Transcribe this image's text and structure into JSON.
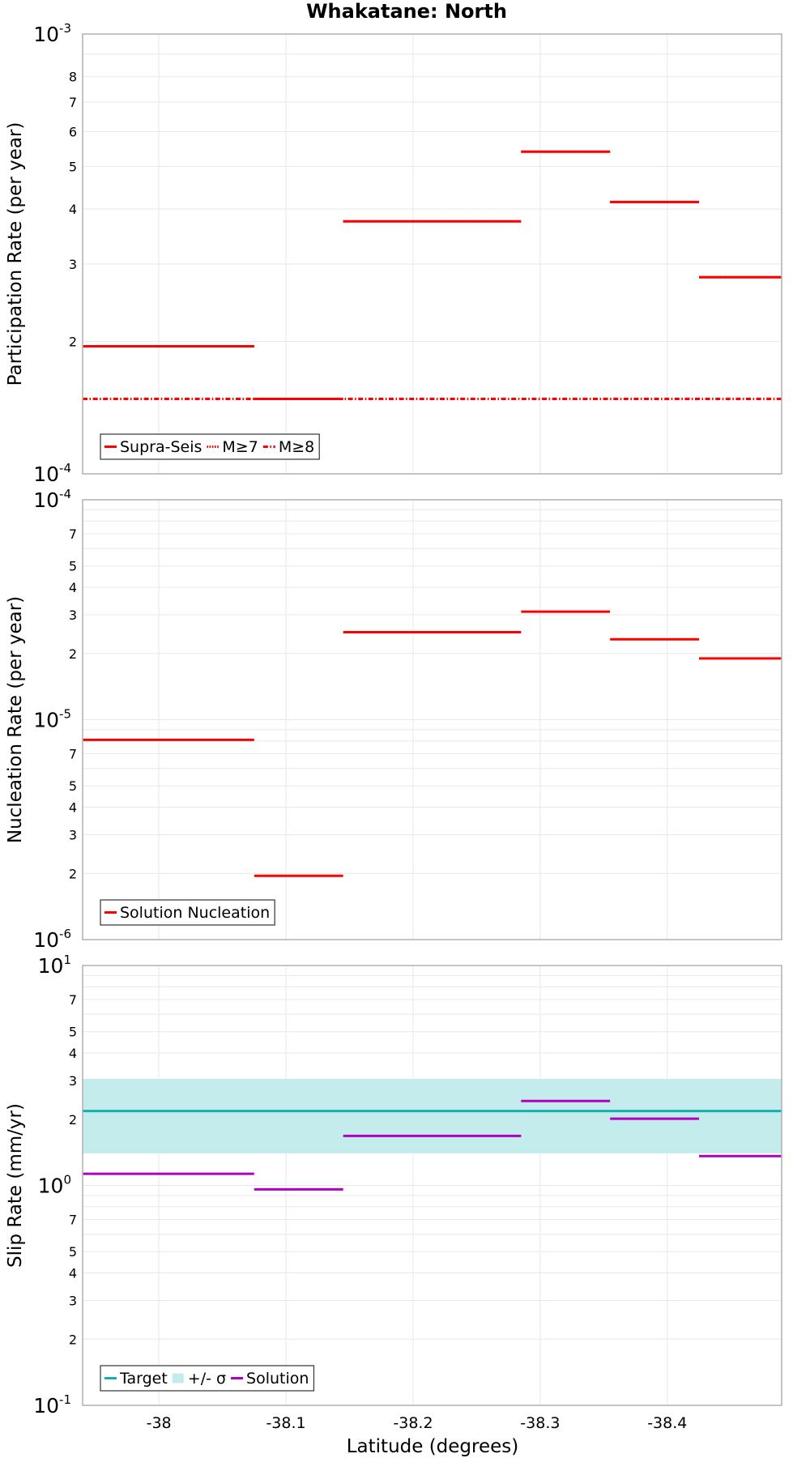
{
  "chart_data": {
    "type": "line",
    "title": "Whakatane: North",
    "xlabel": "Latitude (degrees)",
    "xlim": [
      -37.94,
      -38.49
    ],
    "x_ticks": [
      -38,
      -38.1,
      -38.2,
      -38.3,
      -38.4
    ],
    "x_tick_labels": [
      "-38",
      "-38.1",
      "-38.2",
      "-38.3",
      "-38.4"
    ],
    "colors": {
      "red": "#ff0000",
      "teal": "#14b0b0",
      "band": "#c4ecec",
      "purple": "#b000c0",
      "grid": "#e8e8e8",
      "frame": "#b0b0b0"
    },
    "panels": [
      {
        "ylabel": "Participation Rate (per year)",
        "yscale": "log",
        "ylim": [
          0.0001,
          0.001
        ],
        "major_ticks": [
          {
            "base": "10",
            "exp": "-4",
            "value": 0.0001
          },
          {
            "base": "10",
            "exp": "-3",
            "value": 0.001
          }
        ],
        "minor_ticks": [
          {
            "label": "2",
            "value": 0.0002
          },
          {
            "label": "3",
            "value": 0.0003
          },
          {
            "label": "4",
            "value": 0.0004
          },
          {
            "label": "5",
            "value": 0.0005
          },
          {
            "label": "6",
            "value": 0.0006
          },
          {
            "label": "7",
            "value": 0.0007
          },
          {
            "label": "8",
            "value": 0.0008
          }
        ],
        "legend": [
          {
            "label": "Supra-Seis",
            "style": "solid"
          },
          {
            "label": "M≥7",
            "style": "dotted"
          },
          {
            "label": "M≥8",
            "style": "dashdot"
          }
        ],
        "series": [
          {
            "name": "Supra-Seis",
            "style": "solid",
            "color": "#ff0000",
            "segments": [
              {
                "x0": -37.94,
                "x1": -38.075,
                "y": 0.000195
              },
              {
                "x0": -38.075,
                "x1": -38.145,
                "y": 0.000148
              },
              {
                "x0": -38.145,
                "x1": -38.285,
                "y": 0.000375
              },
              {
                "x0": -38.285,
                "x1": -38.355,
                "y": 0.00054
              },
              {
                "x0": -38.355,
                "x1": -38.425,
                "y": 0.000415
              },
              {
                "x0": -38.425,
                "x1": -38.49,
                "y": 0.00028
              }
            ]
          },
          {
            "name": "M≥7",
            "style": "dotted",
            "color": "#ff0000",
            "segments": [
              {
                "x0": -37.94,
                "x1": -38.075,
                "y": 0.000195
              },
              {
                "x0": -38.075,
                "x1": -38.145,
                "y": 0.000148
              },
              {
                "x0": -38.145,
                "x1": -38.285,
                "y": 0.000375
              },
              {
                "x0": -38.285,
                "x1": -38.355,
                "y": 0.00054
              },
              {
                "x0": -38.355,
                "x1": -38.425,
                "y": 0.000415
              },
              {
                "x0": -38.425,
                "x1": -38.49,
                "y": 0.00028
              }
            ]
          },
          {
            "name": "M≥8",
            "style": "dashdot",
            "color": "#ff0000",
            "segments": [
              {
                "x0": -37.94,
                "x1": -38.49,
                "y": 0.000148
              }
            ]
          }
        ]
      },
      {
        "ylabel": "Nucleation Rate (per year)",
        "yscale": "log",
        "ylim": [
          1e-06,
          0.0001
        ],
        "major_ticks": [
          {
            "base": "10",
            "exp": "-6",
            "value": 1e-06
          },
          {
            "base": "10",
            "exp": "-5",
            "value": 1e-05
          },
          {
            "base": "10",
            "exp": "-4",
            "value": 0.0001
          }
        ],
        "minor_ticks": [
          {
            "label": "2",
            "value": 2e-06
          },
          {
            "label": "3",
            "value": 3e-06
          },
          {
            "label": "4",
            "value": 4e-06
          },
          {
            "label": "5",
            "value": 5e-06
          },
          {
            "label": "7",
            "value": 7e-06
          },
          {
            "label": "2",
            "value": 2e-05
          },
          {
            "label": "3",
            "value": 3e-05
          },
          {
            "label": "4",
            "value": 4e-05
          },
          {
            "label": "5",
            "value": 5e-05
          },
          {
            "label": "7",
            "value": 7e-05
          }
        ],
        "legend": [
          {
            "label": "Solution Nucleation",
            "style": "solid"
          }
        ],
        "series": [
          {
            "name": "Solution Nucleation",
            "style": "solid",
            "color": "#ff0000",
            "segments": [
              {
                "x0": -37.94,
                "x1": -38.075,
                "y": 8.1e-06
              },
              {
                "x0": -38.075,
                "x1": -38.145,
                "y": 1.95e-06
              },
              {
                "x0": -38.145,
                "x1": -38.285,
                "y": 2.5e-05
              },
              {
                "x0": -38.285,
                "x1": -38.355,
                "y": 3.1e-05
              },
              {
                "x0": -38.355,
                "x1": -38.425,
                "y": 2.32e-05
              },
              {
                "x0": -38.425,
                "x1": -38.49,
                "y": 1.9e-05
              }
            ]
          }
        ]
      },
      {
        "ylabel": "Slip Rate (mm/yr)",
        "yscale": "log",
        "ylim": [
          0.1,
          10
        ],
        "major_ticks": [
          {
            "base": "10",
            "exp": "-1",
            "value": 0.1
          },
          {
            "base": "10",
            "exp": "0",
            "value": 1
          },
          {
            "base": "10",
            "exp": "1",
            "value": 10
          }
        ],
        "minor_ticks": [
          {
            "label": "2",
            "value": 0.2
          },
          {
            "label": "3",
            "value": 0.3
          },
          {
            "label": "4",
            "value": 0.4
          },
          {
            "label": "5",
            "value": 0.5
          },
          {
            "label": "7",
            "value": 0.7
          },
          {
            "label": "2",
            "value": 2
          },
          {
            "label": "3",
            "value": 3
          },
          {
            "label": "4",
            "value": 4
          },
          {
            "label": "5",
            "value": 5
          },
          {
            "label": "7",
            "value": 7
          }
        ],
        "legend": [
          {
            "label": "Target",
            "style": "solid"
          },
          {
            "label": "+/- σ",
            "style": "band"
          },
          {
            "label": "Solution",
            "style": "solid"
          }
        ],
        "band": {
          "name": "+/- σ",
          "y_low": 1.4,
          "y_high": 3.05,
          "color": "#c4ecec"
        },
        "series": [
          {
            "name": "Target",
            "style": "solid",
            "color": "#14b0b0",
            "segments": [
              {
                "x0": -37.94,
                "x1": -38.49,
                "y": 2.18
              }
            ]
          },
          {
            "name": "Solution",
            "style": "solid",
            "color": "#b000c0",
            "segments": [
              {
                "x0": -37.94,
                "x1": -38.075,
                "y": 1.13
              },
              {
                "x0": -38.075,
                "x1": -38.145,
                "y": 0.96
              },
              {
                "x0": -38.145,
                "x1": -38.285,
                "y": 1.68
              },
              {
                "x0": -38.285,
                "x1": -38.355,
                "y": 2.42
              },
              {
                "x0": -38.355,
                "x1": -38.425,
                "y": 2.01
              },
              {
                "x0": -38.425,
                "x1": -38.49,
                "y": 1.36
              }
            ]
          }
        ]
      }
    ]
  }
}
